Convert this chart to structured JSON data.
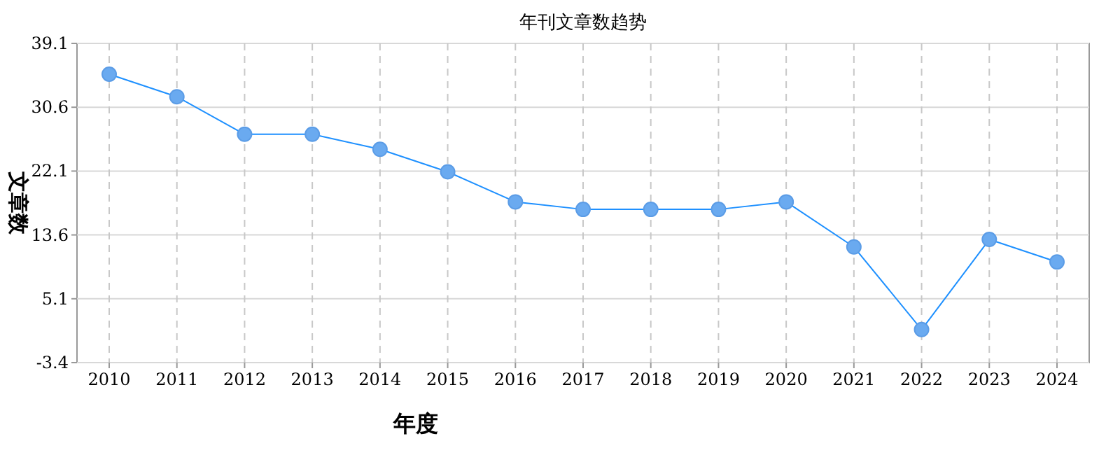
{
  "chart_data": {
    "type": "line",
    "title": "年刊文章数趋势",
    "xlabel": "年度",
    "ylabel": "文章数",
    "categories": [
      "2010",
      "2011",
      "2012",
      "2013",
      "2014",
      "2015",
      "2016",
      "2017",
      "2018",
      "2019",
      "2020",
      "2021",
      "2022",
      "2023",
      "2024"
    ],
    "series": [
      {
        "color": "#1e90ff",
        "values": [
          35,
          32,
          27,
          27,
          25,
          22,
          18,
          17,
          17,
          17,
          18,
          12,
          1,
          13,
          10
        ]
      }
    ],
    "ylim": [
      -3.4,
      39.1
    ],
    "yticks": [
      -3.4,
      5.1,
      13.6,
      22.1,
      30.6,
      39.1
    ],
    "grid": true,
    "marker": "circle",
    "line_style": "solid"
  }
}
